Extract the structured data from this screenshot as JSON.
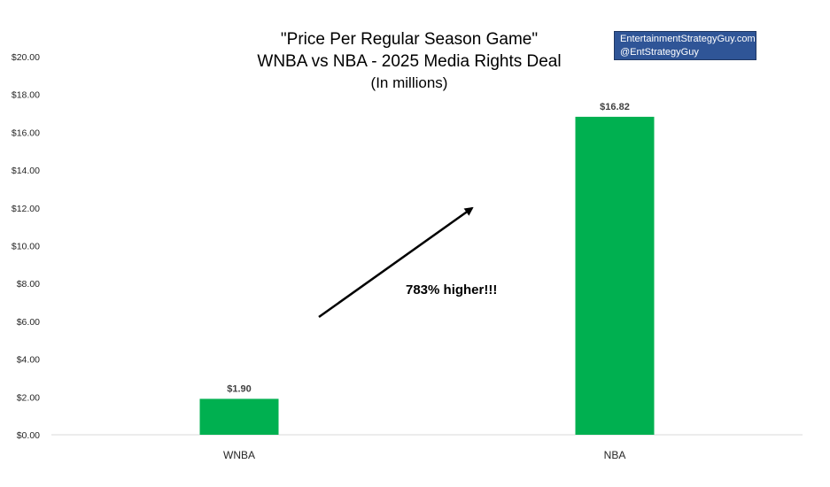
{
  "chart_data": {
    "type": "bar",
    "title": "\"Price Per Regular Season Game\"",
    "subtitle": "WNBA vs NBA - 2025 Media Rights Deal",
    "units_note": "(In millions)",
    "categories": [
      "WNBA",
      "NBA"
    ],
    "values": [
      1.9,
      16.82
    ],
    "data_labels": [
      "$1.90",
      "$16.82"
    ],
    "ylim": [
      0,
      20
    ],
    "yticks": [
      "$0.00",
      "$2.00",
      "$4.00",
      "$6.00",
      "$8.00",
      "$10.00",
      "$12.00",
      "$14.00",
      "$16.00",
      "$18.00",
      "$20.00"
    ],
    "grid": false,
    "bar_color": "#00b050",
    "annotation": "783% higher!!!"
  },
  "brand": {
    "line1": "EntertainmentStrategyGuy.com",
    "line2": "@EntStrategyGuy",
    "background": "#2f5597"
  }
}
